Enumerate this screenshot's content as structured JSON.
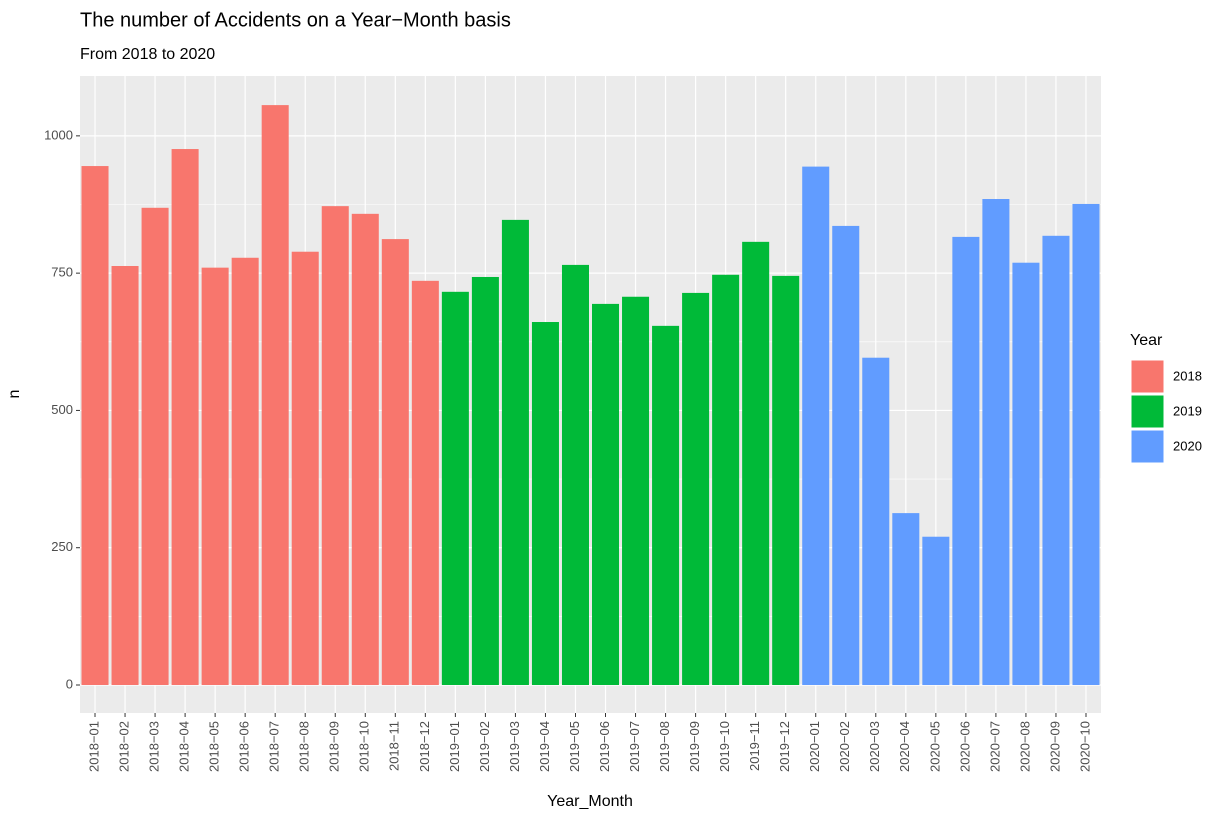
{
  "chart_data": {
    "type": "bar",
    "title": "The number of Accidents on a Year−Month basis",
    "subtitle": "From 2018 to 2020",
    "x_label": "Year_Month",
    "y_label": "n",
    "legend_title": "Year",
    "legend_position": "right",
    "grid": true,
    "background": "#ebebeb",
    "categories": [
      "2018−01",
      "2018−02",
      "2018−03",
      "2018−04",
      "2018−05",
      "2018−06",
      "2018−07",
      "2018−08",
      "2018−09",
      "2018−10",
      "2018−11",
      "2018−12",
      "2019−01",
      "2019−02",
      "2019−03",
      "2019−04",
      "2019−05",
      "2019−06",
      "2019−07",
      "2019−08",
      "2019−09",
      "2019−10",
      "2019−11",
      "2019−12",
      "2020−01",
      "2020−02",
      "2020−03",
      "2020−04",
      "2020−05",
      "2020−06",
      "2020−07",
      "2020−08",
      "2020−09",
      "2020−10"
    ],
    "series": [
      {
        "name": "2018",
        "color": "#f8766d",
        "values": [
          945,
          763,
          869,
          976,
          760,
          778,
          1056,
          789,
          872,
          858,
          812,
          736,
          null,
          null,
          null,
          null,
          null,
          null,
          null,
          null,
          null,
          null,
          null,
          null,
          null,
          null,
          null,
          null,
          null,
          null,
          null,
          null,
          null,
          null
        ]
      },
      {
        "name": "2019",
        "color": "#00ba38",
        "values": [
          null,
          null,
          null,
          null,
          null,
          null,
          null,
          null,
          null,
          null,
          null,
          null,
          716,
          743,
          847,
          661,
          765,
          694,
          707,
          654,
          714,
          747,
          807,
          745,
          null,
          null,
          null,
          null,
          null,
          null,
          null,
          null,
          null,
          null
        ]
      },
      {
        "name": "2020",
        "color": "#619cff",
        "values": [
          null,
          null,
          null,
          null,
          null,
          null,
          null,
          null,
          null,
          null,
          null,
          null,
          null,
          null,
          null,
          null,
          null,
          null,
          null,
          null,
          null,
          null,
          null,
          null,
          944,
          836,
          596,
          313,
          270,
          816,
          885,
          769,
          818,
          876
        ]
      }
    ],
    "ylim": [
      -51,
      1109
    ],
    "yticks": [
      0,
      250,
      500,
      750,
      1000
    ]
  }
}
